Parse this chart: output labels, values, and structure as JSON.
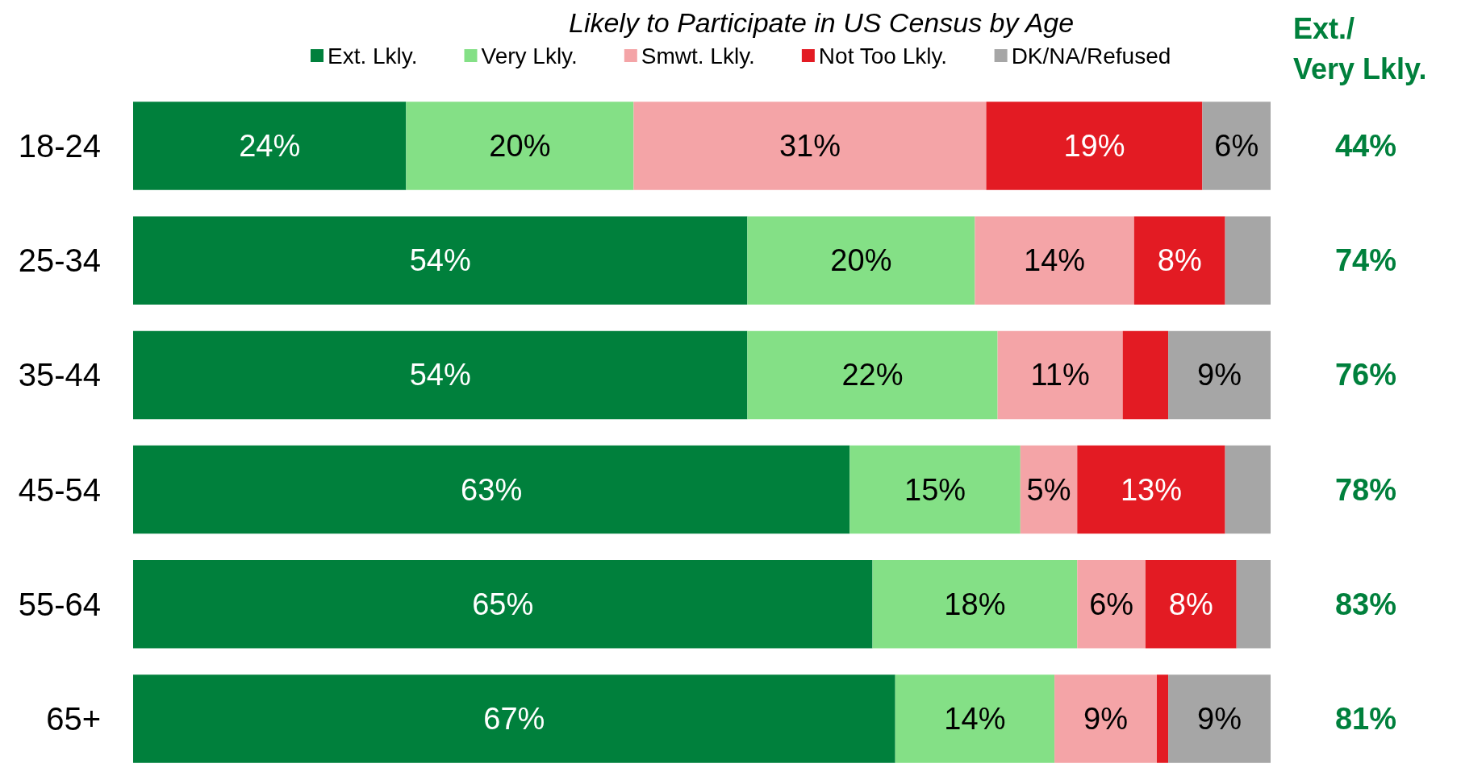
{
  "chart_data": {
    "type": "bar",
    "orientation": "horizontal",
    "stacked": true,
    "title": "Likely to Participate in US Census by Age",
    "categories": [
      "18-24",
      "25-34",
      "35-44",
      "45-54",
      "55-64",
      "65+"
    ],
    "series": [
      {
        "name": "Ext. Lkly.",
        "color": "#00803c",
        "values": [
          24,
          54,
          54,
          63,
          65,
          67
        ],
        "value_labels": [
          "24%",
          "54%",
          "54%",
          "63%",
          "65%",
          "67%"
        ]
      },
      {
        "name": "Very Lkly.",
        "color": "#84e086",
        "values": [
          20,
          20,
          22,
          15,
          18,
          14
        ],
        "value_labels": [
          "20%",
          "20%",
          "22%",
          "15%",
          "18%",
          "14%"
        ]
      },
      {
        "name": "Smwt. Lkly.",
        "color": "#f4a4a7",
        "values": [
          31,
          14,
          11,
          5,
          6,
          9
        ],
        "value_labels": [
          "31%",
          "14%",
          "11%",
          "5%",
          "6%",
          "9%"
        ]
      },
      {
        "name": "Not Too Lkly.",
        "color": "#e31b23",
        "values": [
          19,
          8,
          4,
          13,
          8,
          1
        ],
        "value_labels": [
          "19%",
          "8%",
          null,
          "13%",
          "8%",
          null
        ]
      },
      {
        "name": "DK/NA/Refused",
        "color": "#a6a6a6",
        "values": [
          6,
          4,
          9,
          4,
          3,
          9
        ],
        "value_labels": [
          "6%",
          null,
          "9%",
          null,
          null,
          "9%"
        ]
      }
    ],
    "xlim": [
      0,
      100
    ],
    "tick_labels": "y",
    "grid": false,
    "legend": "top",
    "annotations": [
      "Ext./\nVery Lkly.",
      "44%",
      "74%",
      "76%",
      "78%",
      "83%",
      "81%"
    ]
  }
}
